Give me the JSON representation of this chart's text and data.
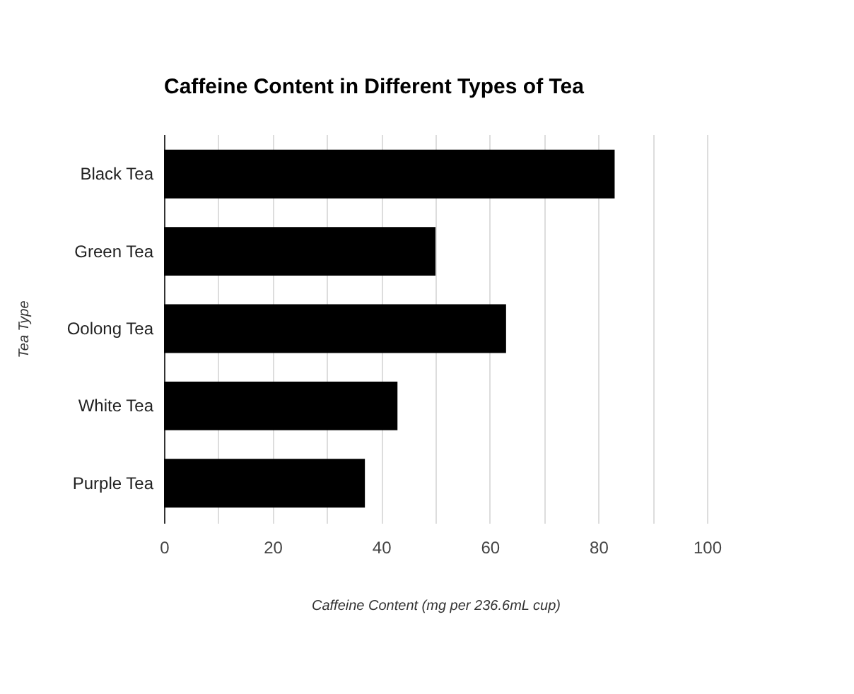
{
  "chart_data": {
    "type": "bar",
    "orientation": "horizontal",
    "title": "Caffeine Content in Different Types of Tea",
    "xlabel": "Caffeine Content (mg per 236.6mL cup)",
    "ylabel": "Tea Type",
    "categories": [
      "Black Tea",
      "Green Tea",
      "Oolong Tea",
      "White Tea",
      "Purple Tea"
    ],
    "values": [
      83,
      50,
      63,
      43,
      37
    ],
    "color": "#000000",
    "xlim": [
      0,
      100
    ],
    "xticks": [
      0,
      {
        "value": 10,
        "label": null
      },
      20,
      {
        "value": 30,
        "label": null
      },
      40,
      {
        "value": 50,
        "label": null
      },
      60,
      {
        "value": 70,
        "label": null
      },
      80,
      {
        "value": 90,
        "label": null
      },
      100
    ],
    "grid": "x"
  }
}
